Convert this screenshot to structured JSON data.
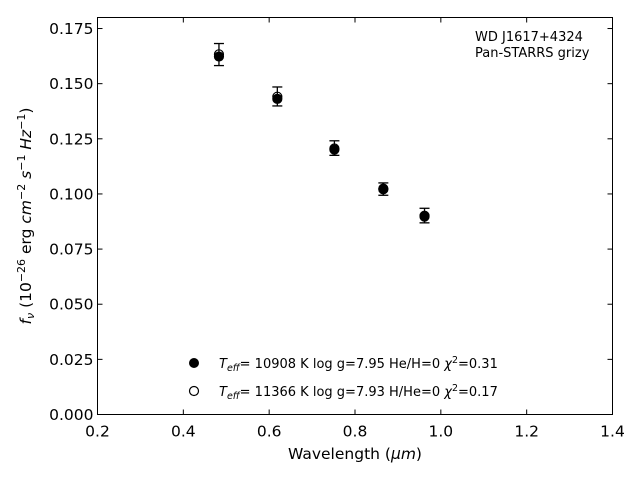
{
  "chart_data": {
    "type": "scatter",
    "xlabel_prefix": "Wavelength (",
    "xlabel_unit": "μm",
    "xlabel_suffix": ")",
    "ylabel": {
      "f": "f",
      "nu": "ν",
      "open": " (10",
      "exp_neg26": "−26",
      "erg": " erg ",
      "cm": "cm",
      "exp_neg2": "−2",
      "s": "s",
      "exp_neg1a": "−1",
      "hz": "Hz",
      "exp_neg1b": "−1",
      "close": ")"
    },
    "xlim": [
      0.2,
      1.4
    ],
    "ylim": [
      0.0,
      0.18
    ],
    "xticks": [
      0.2,
      0.4,
      0.6,
      0.8,
      1.0,
      1.2,
      1.4
    ],
    "xtick_labels": [
      "0.2",
      "0.4",
      "0.6",
      "0.8",
      "1.0",
      "1.2",
      "1.4"
    ],
    "yticks": [
      0.0,
      0.025,
      0.05,
      0.075,
      0.1,
      0.125,
      0.15,
      0.175
    ],
    "ytick_labels": [
      "0.000",
      "0.025",
      "0.050",
      "0.075",
      "0.100",
      "0.125",
      "0.150",
      "0.175"
    ],
    "grid": false,
    "annotation": [
      "WD J1617+4324",
      "Pan-STARRS grizy"
    ],
    "observed": {
      "x": [
        0.483,
        0.619,
        0.752,
        0.866,
        0.962
      ],
      "y": [
        0.1632,
        0.1442,
        0.1208,
        0.1022,
        0.0902
      ],
      "yerr": [
        0.005,
        0.0043,
        0.0033,
        0.0028,
        0.0033
      ]
    },
    "series": [
      {
        "marker": "filled",
        "x": [
          0.483,
          0.619,
          0.752,
          0.866,
          0.962
        ],
        "y": [
          0.1623,
          0.1431,
          0.1201,
          0.1021,
          0.0897
        ],
        "legend": {
          "T": "T",
          "eff": "eff",
          "teff_value": "= 10908 K",
          "logg": "log g=7.95",
          "comp": "He/H=0",
          "chi": "χ",
          "two": "2",
          "chi_value": "=0.31"
        }
      },
      {
        "marker": "open",
        "x": [
          0.483,
          0.619,
          0.752,
          0.866,
          0.962
        ],
        "y": [
          0.1633,
          0.1441,
          0.1206,
          0.1024,
          0.0901
        ],
        "legend": {
          "T": "T",
          "eff": "eff",
          "teff_value": "= 11366 K",
          "logg": "log g=7.93",
          "comp": "H/He=0",
          "chi": "χ",
          "two": "2",
          "chi_value": "=0.17"
        }
      }
    ],
    "legend_position": "lower-center"
  }
}
